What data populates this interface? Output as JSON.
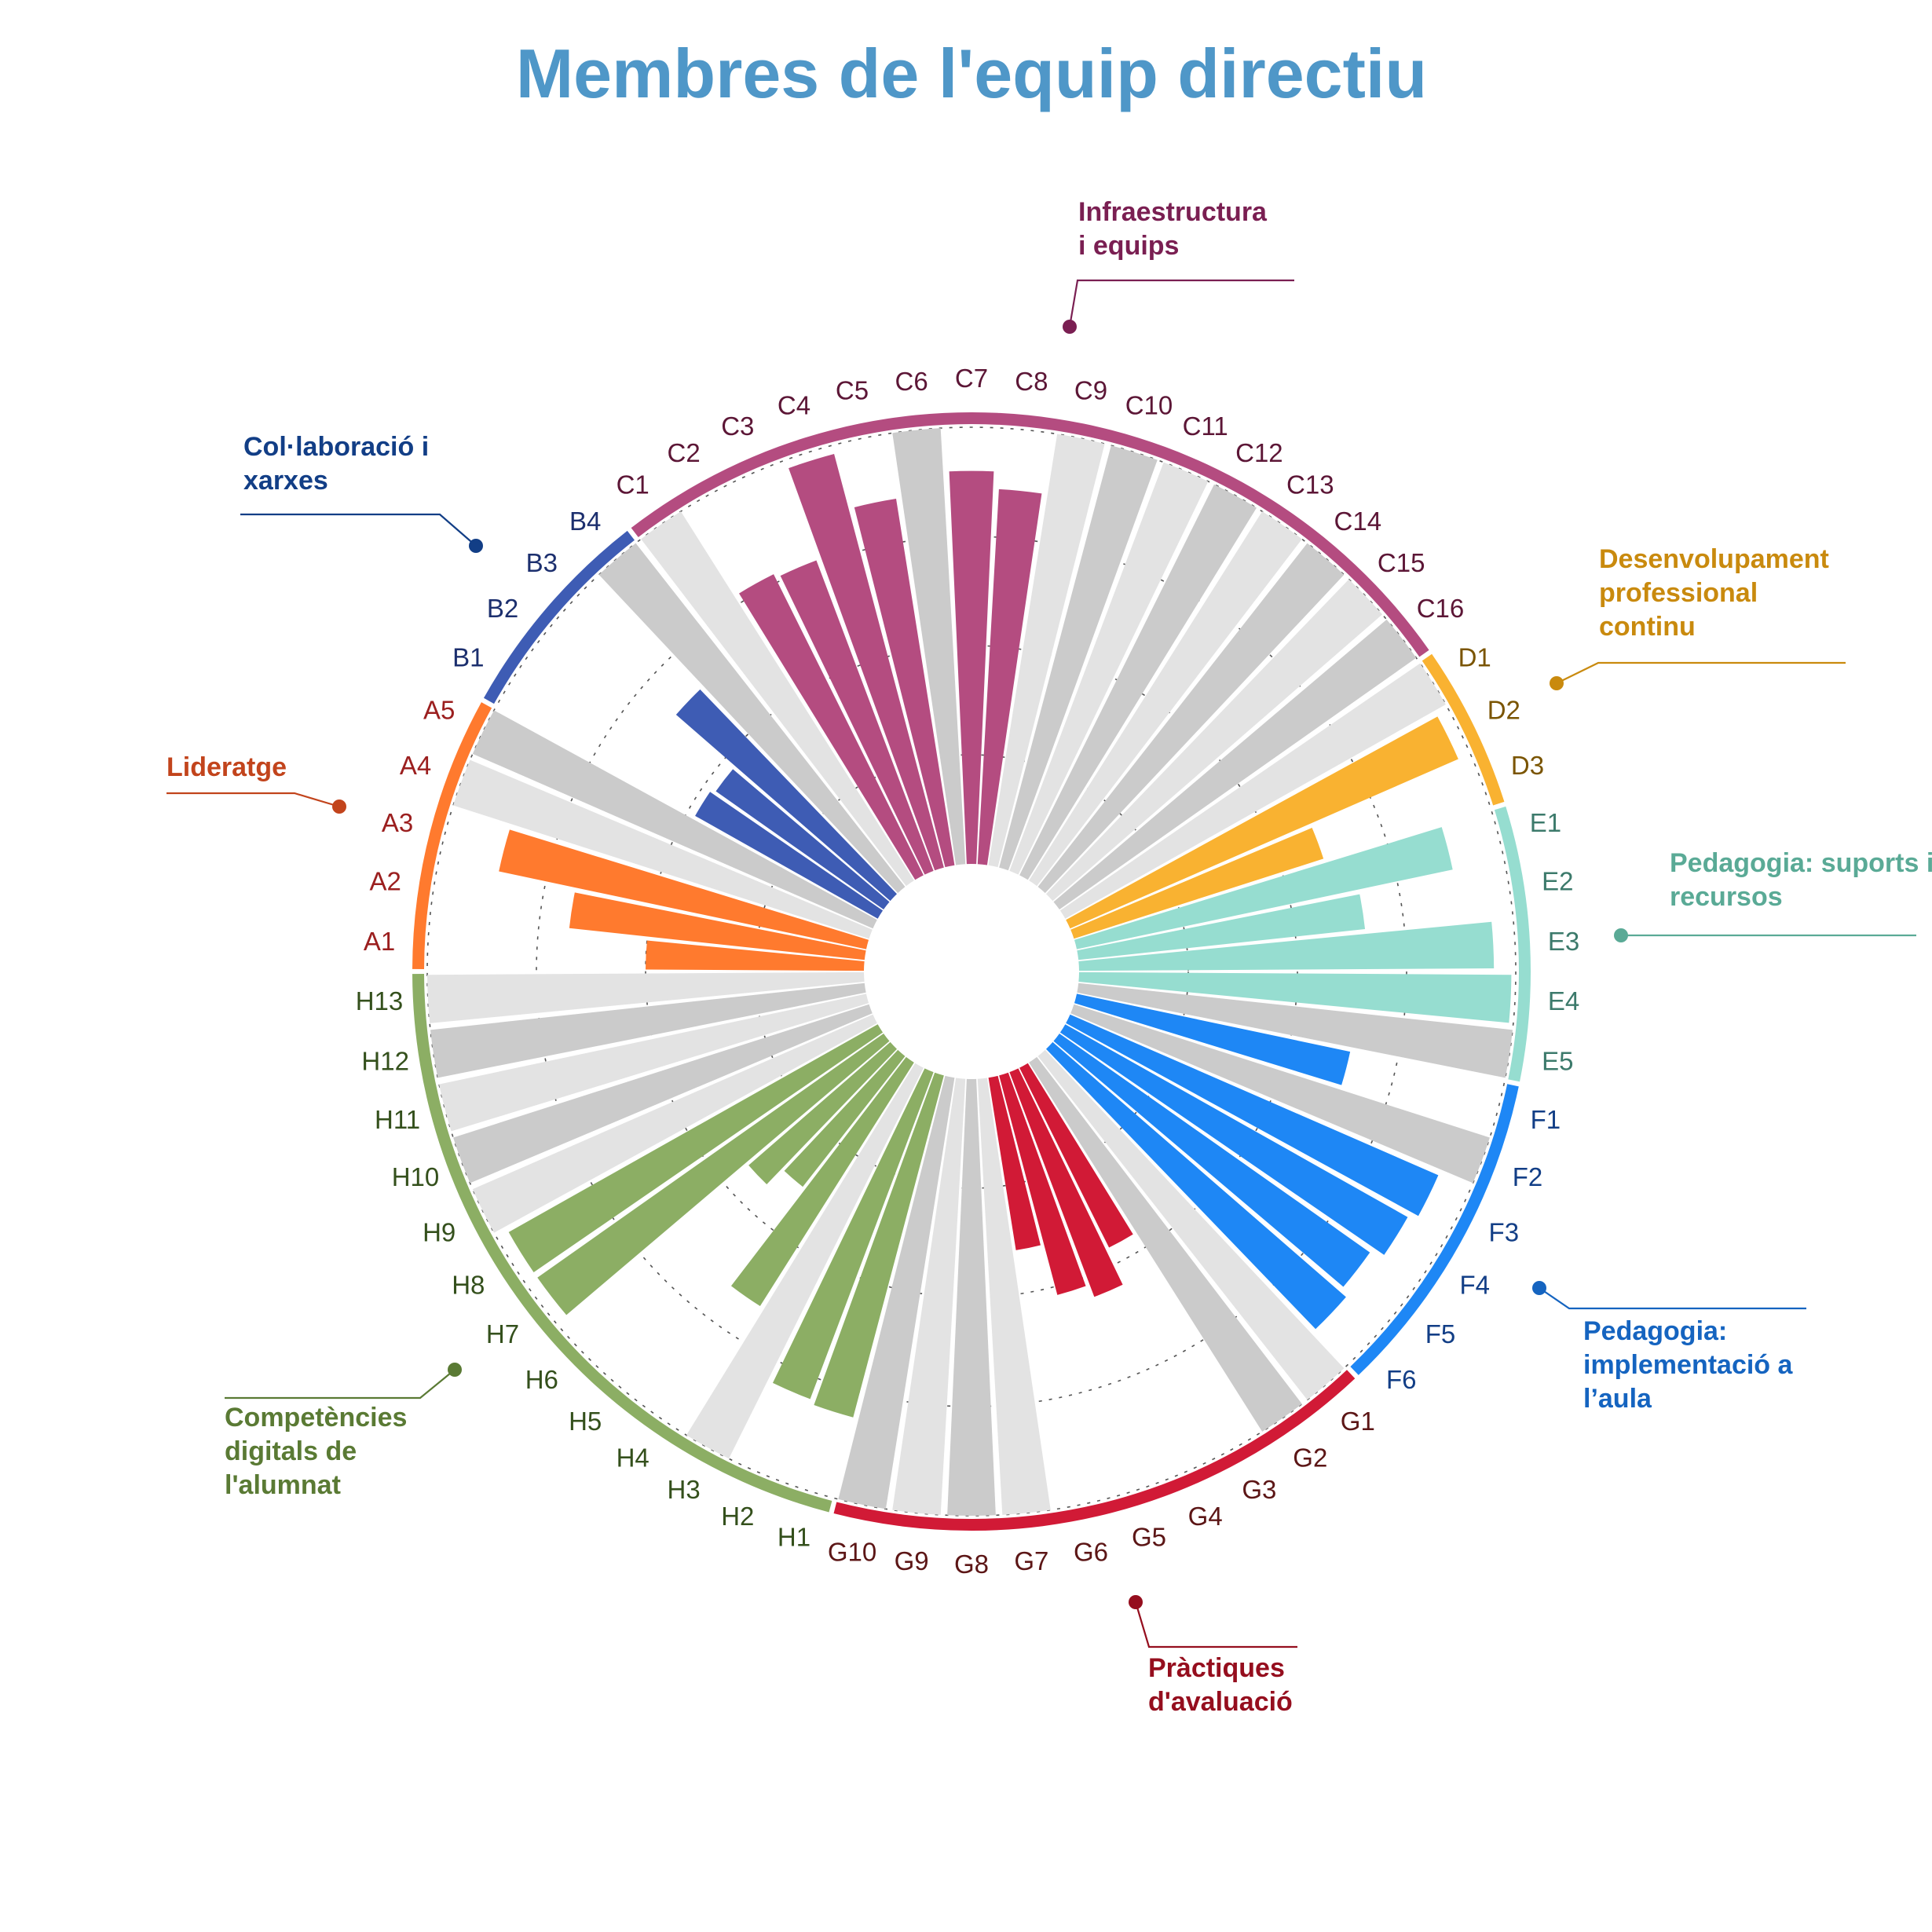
{
  "title": "Membres de l'equip directiu",
  "chart_data": {
    "type": "radial_bar",
    "title": "Membres de l'equip directiu",
    "rlim": [
      0,
      1
    ],
    "grid": "dotted concentric circles",
    "categories": [
      {
        "name": "Lideratge",
        "color": "#ff7a2e",
        "text_color": "#c2441c",
        "label_color": "#9b1f1f",
        "items": [
          "A1",
          "A2",
          "A3",
          "A4",
          "A5"
        ],
        "values": [
          0.5,
          0.68,
          0.86,
          null,
          null
        ]
      },
      {
        "name": "Col·laboració i xarxes",
        "color": "#3e5cb4",
        "text_color": "#123e86",
        "label_color": "#1c2f6e",
        "items": [
          "B1",
          "B2",
          "B3",
          "B4"
        ],
        "values": [
          0.48,
          0.47,
          0.65,
          null
        ]
      },
      {
        "name": "Infraestructura i equips",
        "color": "#b44c80",
        "text_color": "#7a1f52",
        "label_color": "#5c1636",
        "items": [
          "C1",
          "C2",
          "C3",
          "C4",
          "C5",
          "C6",
          "C7",
          "C8",
          "C9",
          "C10",
          "C11",
          "C12",
          "C13",
          "C14",
          "C15",
          "C16"
        ],
        "values": [
          null,
          0.77,
          0.76,
          0.98,
          0.85,
          null,
          0.9,
          0.86,
          null,
          null,
          null,
          null,
          null,
          null,
          null,
          null
        ]
      },
      {
        "name": "Desenvolupament professional continu",
        "color": "#f9b231",
        "text_color": "#c98a0e",
        "label_color": "#7a5400",
        "items": [
          "D1",
          "D2",
          "D3"
        ],
        "values": [
          null,
          0.97,
          0.6
        ]
      },
      {
        "name": "Pedagogia: suports i recursos",
        "color": "#96ddd0",
        "text_color": "#5aaa96",
        "label_color": "#3c7a6b",
        "items": [
          "E1",
          "E2",
          "E3",
          "E4",
          "E5"
        ],
        "values": [
          0.88,
          0.66,
          0.95,
          0.99,
          null
        ]
      },
      {
        "name": "Pedagogia: implementació a l’aula",
        "color": "#1e87f5",
        "text_color": "#1564c0",
        "label_color": "#123e86",
        "items": [
          "F1",
          "F2",
          "F3",
          "F4",
          "F5",
          "F6"
        ],
        "values": [
          0.64,
          null,
          0.92,
          0.9,
          0.87,
          0.89
        ]
      },
      {
        "name": "Pràctiques d'avaluació",
        "color": "#d11a36",
        "text_color": "#950e1e",
        "label_color": "#5c1616",
        "items": [
          "G1",
          "G2",
          "G3",
          "G4",
          "G5",
          "G6",
          "G7",
          "G8",
          "G9",
          "G10"
        ],
        "values": [
          null,
          null,
          0.46,
          0.55,
          0.52,
          0.4,
          null,
          null,
          null,
          null
        ]
      },
      {
        "name": "Competències digitals de l'alumnat",
        "color": "#8cae64",
        "text_color": "#5a7a34",
        "label_color": "#34501c",
        "items": [
          "H1",
          "H2",
          "H3",
          "H4",
          "H5",
          "H6",
          "H7",
          "H8",
          "H9",
          "H10",
          "H11",
          "H12",
          "H13"
        ],
        "values": [
          0.81,
          0.8,
          null,
          0.66,
          0.38,
          0.43,
          0.97,
          0.97,
          null,
          null,
          null,
          null,
          null
        ]
      }
    ]
  }
}
